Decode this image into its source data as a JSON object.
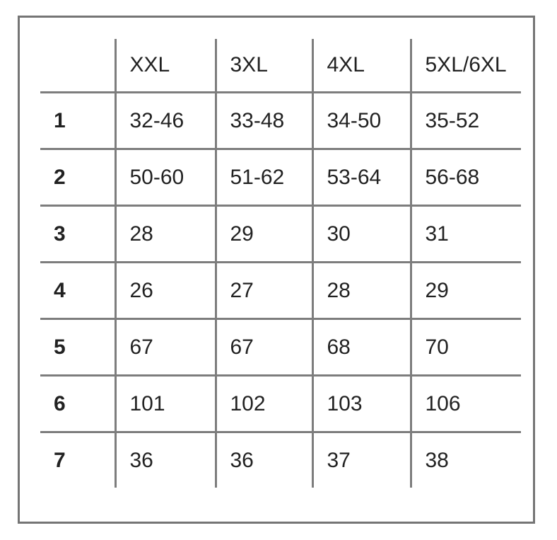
{
  "table": {
    "corner_label": "",
    "header": [
      "XXL",
      "3XL",
      "4XL",
      "5XL/6XL"
    ],
    "rows": [
      {
        "label": "1",
        "values": [
          "32-46",
          "33-48",
          "34-50",
          "35-52"
        ]
      },
      {
        "label": "2",
        "values": [
          "50-60",
          "51-62",
          "53-64",
          "56-68"
        ]
      },
      {
        "label": "3",
        "values": [
          "28",
          "29",
          "30",
          "31"
        ]
      },
      {
        "label": "4",
        "values": [
          "26",
          "27",
          "28",
          "29"
        ]
      },
      {
        "label": "5",
        "values": [
          "67",
          "67",
          "68",
          "70"
        ]
      },
      {
        "label": "6",
        "values": [
          "101",
          "102",
          "103",
          "106"
        ]
      },
      {
        "label": "7",
        "values": [
          "36",
          "36",
          "37",
          "38"
        ]
      }
    ]
  },
  "colors": {
    "background": "#ffffff",
    "border": "#757575",
    "grid": "#7d7d7d",
    "text": "#222222"
  }
}
